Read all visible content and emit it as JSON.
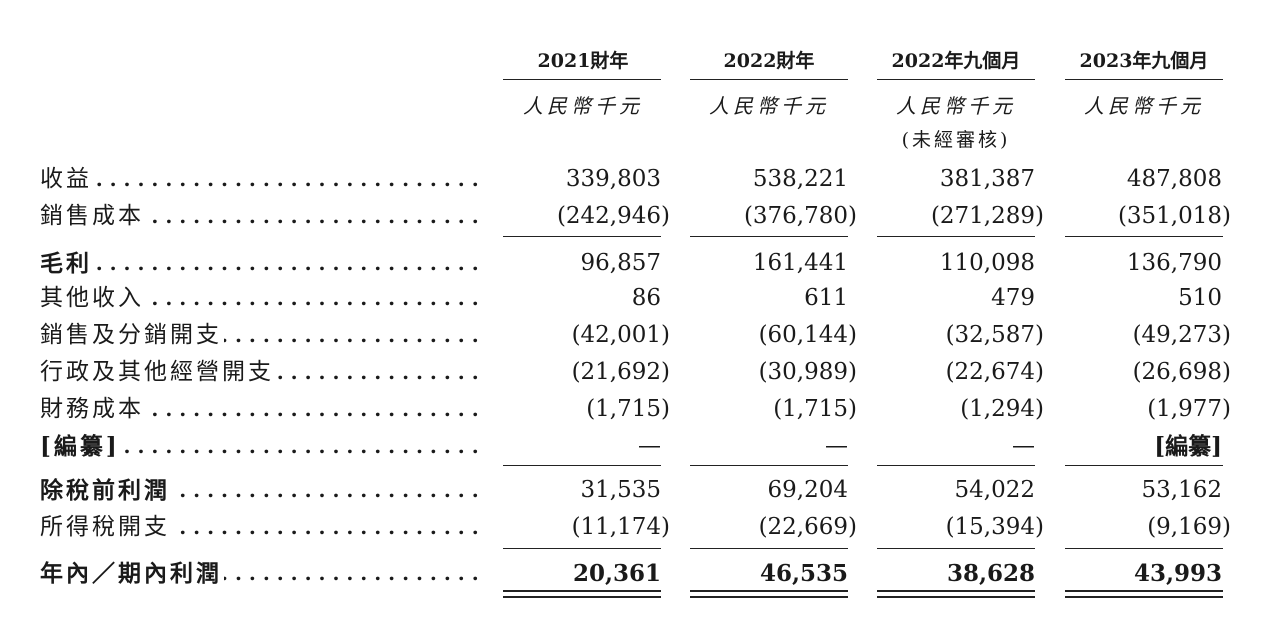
{
  "columns": [
    {
      "header": "2021財年",
      "unit": "人民幣千元",
      "note": ""
    },
    {
      "header": "2022財年",
      "unit": "人民幣千元",
      "note": ""
    },
    {
      "header": "2022年九個月",
      "unit": "人民幣千元",
      "note": "(未經審核)"
    },
    {
      "header": "2023年九個月",
      "unit": "人民幣千元",
      "note": ""
    }
  ],
  "rows": [
    {
      "label": "收益",
      "bold": false,
      "values": [
        "339,803",
        "538,221",
        "381,387",
        "487,808"
      ]
    },
    {
      "label": "銷售成本",
      "bold": false,
      "values": [
        "(242,946)",
        "(376,780)",
        "(271,289)",
        "(351,018)"
      ]
    },
    {
      "label": "毛利",
      "bold": true,
      "values": [
        "96,857",
        "161,441",
        "110,098",
        "136,790"
      ]
    },
    {
      "label": "其他收入",
      "bold": false,
      "values": [
        "86",
        "611",
        "479",
        "510"
      ]
    },
    {
      "label": "銷售及分銷開支",
      "bold": false,
      "values": [
        "(42,001)",
        "(60,144)",
        "(32,587)",
        "(49,273)"
      ]
    },
    {
      "label": "行政及其他經營開支",
      "bold": false,
      "values": [
        "(21,692)",
        "(30,989)",
        "(22,674)",
        "(26,698)"
      ]
    },
    {
      "label": "財務成本",
      "bold": false,
      "values": [
        "(1,715)",
        "(1,715)",
        "(1,294)",
        "(1,977)"
      ]
    },
    {
      "label": "[編纂]",
      "bold": true,
      "values": [
        "—",
        "—",
        "—",
        "[編纂]"
      ]
    },
    {
      "label": "除稅前利潤",
      "bold": true,
      "values": [
        "31,535",
        "69,204",
        "54,022",
        "53,162"
      ]
    },
    {
      "label": "所得稅開支",
      "bold": false,
      "values": [
        "(11,174)",
        "(22,669)",
        "(15,394)",
        "(9,169)"
      ]
    },
    {
      "label": "年內／期內利潤",
      "bold": true,
      "values": [
        "20,361",
        "46,535",
        "38,628",
        "43,993"
      ]
    }
  ]
}
